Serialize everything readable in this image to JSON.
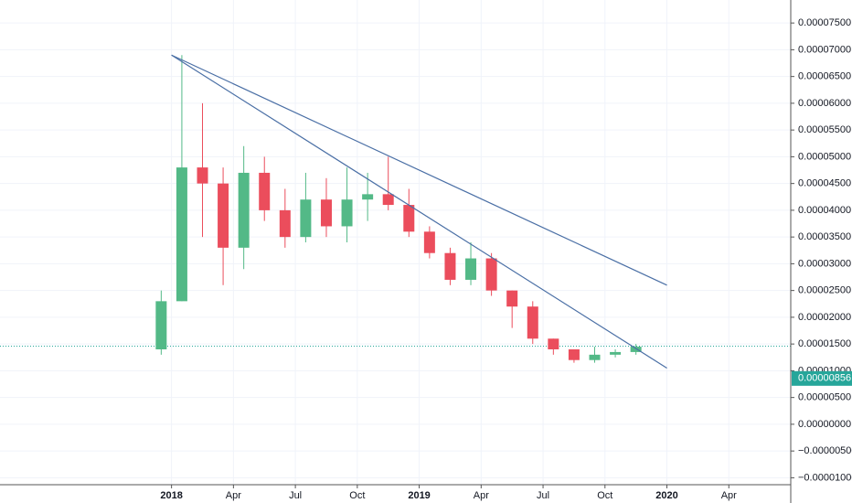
{
  "chart_data": {
    "type": "candlestick",
    "x": [
      "2017-12",
      "2018-01",
      "2018-02",
      "2018-03",
      "2018-04",
      "2018-05",
      "2018-06",
      "2018-07",
      "2018-08",
      "2018-09",
      "2018-10",
      "2018-11",
      "2018-12",
      "2019-01",
      "2019-02",
      "2019-03",
      "2019-04",
      "2019-05",
      "2019-06",
      "2019-07",
      "2019-08",
      "2019-09",
      "2019-10",
      "2019-11"
    ],
    "open": [
      1.4e-05,
      2.3e-05,
      4.8e-05,
      4.5e-05,
      3.3e-05,
      4.7e-05,
      4e-05,
      3.5e-05,
      4.2e-05,
      3.7e-05,
      4.2e-05,
      4.3e-05,
      4.1e-05,
      3.6e-05,
      3.2e-05,
      2.7e-05,
      3.1e-05,
      2.5e-05,
      2.2e-05,
      1.6e-05,
      1.4e-05,
      1.2e-05,
      1.3e-05,
      1.35e-05
    ],
    "high": [
      2.5e-05,
      6.9e-05,
      6e-05,
      4.8e-05,
      5.2e-05,
      5e-05,
      4.4e-05,
      4.7e-05,
      4.6e-05,
      4.8e-05,
      4.7e-05,
      5e-05,
      4.4e-05,
      3.7e-05,
      3.3e-05,
      3.4e-05,
      3.2e-05,
      2.5e-05,
      2.3e-05,
      1.6e-05,
      1.4e-05,
      1.45e-05,
      1.4e-05,
      1.5e-05
    ],
    "low": [
      1.3e-05,
      2.3e-05,
      3.5e-05,
      2.6e-05,
      2.9e-05,
      3.8e-05,
      3.3e-05,
      3.4e-05,
      3.5e-05,
      3.4e-05,
      3.8e-05,
      4e-05,
      3.5e-05,
      3.1e-05,
      2.6e-05,
      2.6e-05,
      2.4e-05,
      1.8e-05,
      1.5e-05,
      1.3e-05,
      1.15e-05,
      1.15e-05,
      1.25e-05,
      1.3e-05
    ],
    "close": [
      2.3e-05,
      4.8e-05,
      4.5e-05,
      3.3e-05,
      4.7e-05,
      4e-05,
      3.5e-05,
      4.2e-05,
      3.7e-05,
      4.2e-05,
      4.3e-05,
      4.1e-05,
      3.6e-05,
      3.2e-05,
      2.7e-05,
      3.1e-05,
      2.5e-05,
      2.2e-05,
      1.6e-05,
      1.4e-05,
      1.2e-05,
      1.3e-05,
      1.35e-05,
      1.45e-05
    ],
    "up_color": "#53b987",
    "down_color": "#eb4d5c",
    "trend_lines": [
      {
        "x": [
          "2018-01",
          "2020-01"
        ],
        "values": [
          6.9e-05,
          2.6e-05
        ]
      },
      {
        "x": [
          "2018-01",
          "2020-01"
        ],
        "values": [
          6.9e-05,
          1.05e-05
        ]
      }
    ],
    "trend_color": "#4a6fa5",
    "last_line": 1.46e-05,
    "price_label": {
      "value": 8.56e-06,
      "label": "0.00000856"
    },
    "price_label_color": "#26a69a",
    "xlim": [
      "2017-05",
      "2020-07"
    ],
    "xticks": [
      {
        "value": "2018-01",
        "label": "2018"
      },
      {
        "value": "2018-04",
        "label": "Apr"
      },
      {
        "value": "2018-07",
        "label": "Jul"
      },
      {
        "value": "2018-10",
        "label": "Oct"
      },
      {
        "value": "2019-01",
        "label": "2019"
      },
      {
        "value": "2019-04",
        "label": "Apr"
      },
      {
        "value": "2019-07",
        "label": "Jul"
      },
      {
        "value": "2019-10",
        "label": "Oct"
      },
      {
        "value": "2020-01",
        "label": "2020"
      },
      {
        "value": "2020-04",
        "label": "Apr"
      }
    ],
    "ylim": [
      -1.13e-05,
      7.93e-05
    ],
    "yticks": [
      {
        "value": 7.5e-05,
        "label": "0.00007500"
      },
      {
        "value": 7e-05,
        "label": "0.00007000"
      },
      {
        "value": 6.5e-05,
        "label": "0.00006500"
      },
      {
        "value": 6e-05,
        "label": "0.00006000"
      },
      {
        "value": 5.5e-05,
        "label": "0.00005500"
      },
      {
        "value": 5e-05,
        "label": "0.00005000"
      },
      {
        "value": 4.5e-05,
        "label": "0.00004500"
      },
      {
        "value": 4e-05,
        "label": "0.00004000"
      },
      {
        "value": 3.5e-05,
        "label": "0.00003500"
      },
      {
        "value": 3e-05,
        "label": "0.00003000"
      },
      {
        "value": 2.5e-05,
        "label": "0.00002500"
      },
      {
        "value": 2e-05,
        "label": "0.00002000"
      },
      {
        "value": 1.5e-05,
        "label": "0.00001500"
      },
      {
        "value": 1e-05,
        "label": "0.00001000"
      },
      {
        "value": 5e-06,
        "label": "0.00000500"
      },
      {
        "value": 0,
        "label": "0.00000000"
      },
      {
        "value": -5e-06,
        "label": "−0.00000500"
      },
      {
        "value": -1e-05,
        "label": "−0.00001000"
      }
    ],
    "grid": true
  }
}
